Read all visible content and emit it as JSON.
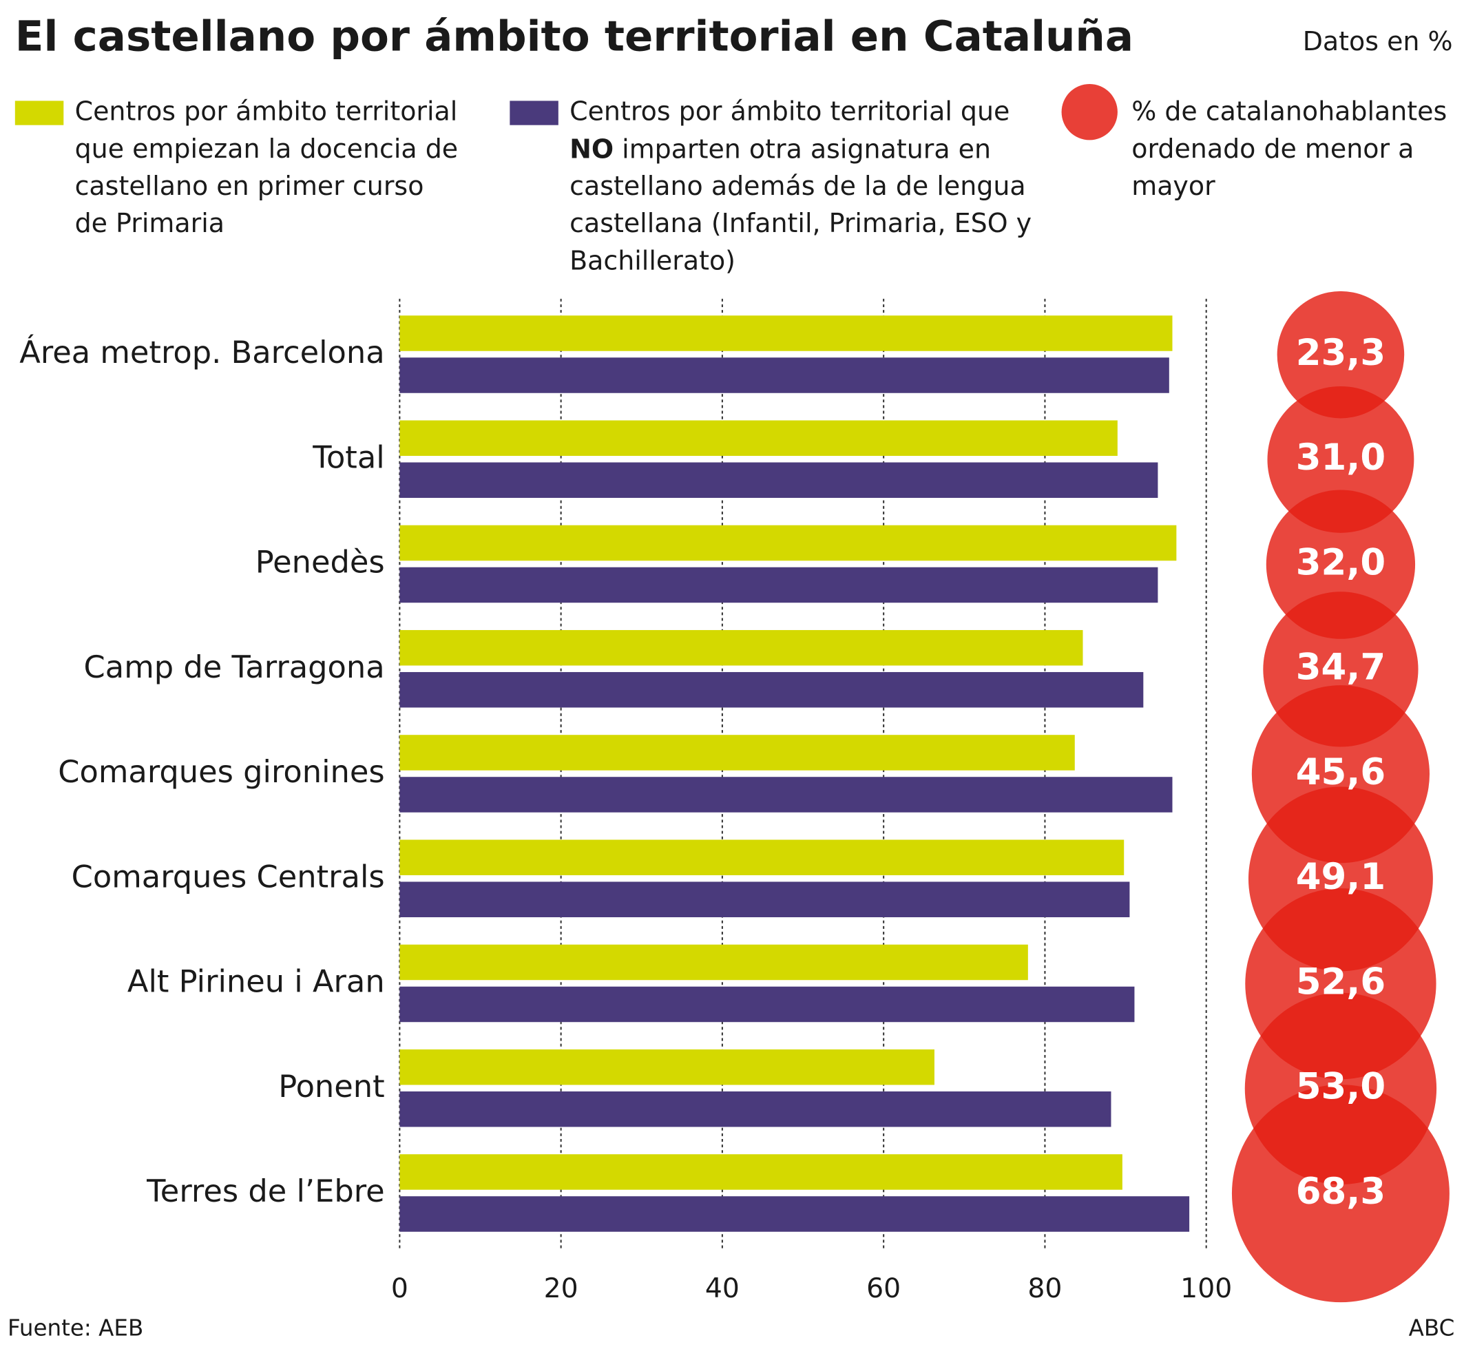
{
  "chart_data": {
    "type": "bar",
    "orientation": "horizontal",
    "title": "El castellano por ámbito territorial en Cataluña",
    "subtitle": "Datos en %",
    "source": "Fuente: AEB",
    "credit": "ABC",
    "categories": [
      "Área metrop. Barcelona",
      "Total",
      "Penedès",
      "Camp de Tarragona",
      "Comarques gironines",
      "Comarques Centrals",
      "Alt Pirineu i Aran",
      "Ponent",
      "Terres de l’Ebre"
    ],
    "series": [
      {
        "name": [
          "Centros por ámbito territorial",
          "que empiezan la docencia de",
          "castellano en primer curso",
          "de Primaria"
        ],
        "color": "#d4d900",
        "values": [
          95.8,
          89.0,
          96.3,
          84.7,
          83.7,
          89.8,
          77.9,
          66.3,
          89.6
        ]
      },
      {
        "name": [
          "Centros por ámbito territorial que",
          [
            "NO",
            " imparten otra asignatura en"
          ],
          "castellano además de la de lengua",
          "castellana (Infantil, Primaria, ESO y",
          "Bachillerato)"
        ],
        "color": "#4a3a7c",
        "values": [
          95.4,
          94.0,
          94.0,
          92.2,
          95.8,
          90.5,
          91.1,
          88.2,
          97.9
        ]
      },
      {
        "name": [
          "% de catalanohablantes",
          "ordenado de menor a",
          "mayor"
        ],
        "type": "bubble",
        "color": "#e41e14",
        "values": [
          23.3,
          31.0,
          32.0,
          34.7,
          45.6,
          49.1,
          52.6,
          53.0,
          68.3
        ],
        "value_labels": [
          "23,3",
          "31,0",
          "32,0",
          "34,7",
          "45,6",
          "49,1",
          "52,6",
          "53,0",
          "68,3"
        ]
      }
    ],
    "xlim": [
      0,
      100
    ],
    "xticks": [
      0,
      20,
      40,
      60,
      80,
      100
    ],
    "grid": true
  }
}
